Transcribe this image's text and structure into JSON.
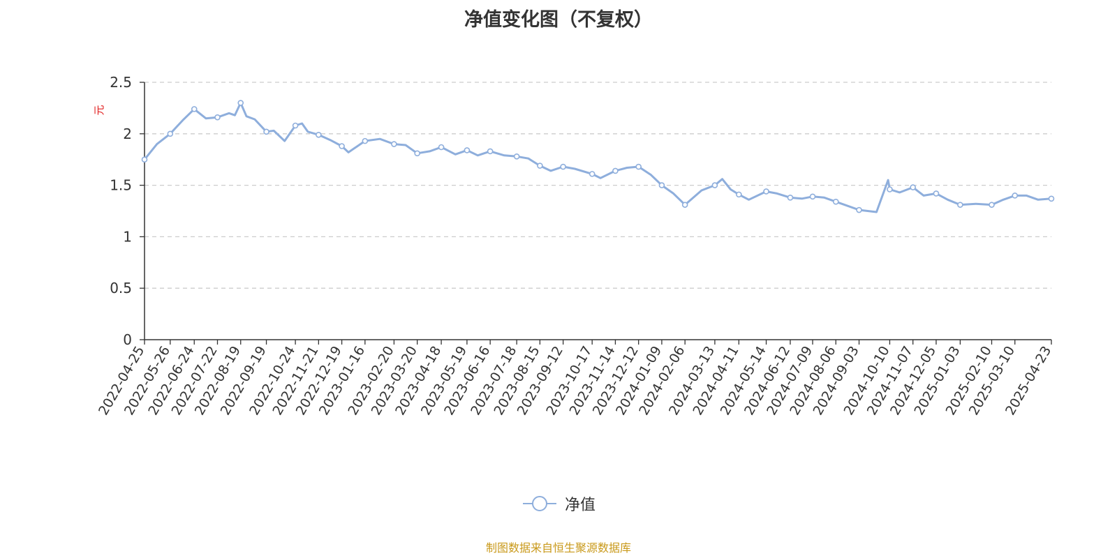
{
  "title": "净值变化图（不复权）",
  "source_note": "制图数据来自恒生聚源数据库",
  "colors": {
    "series": "#8eaedc",
    "marker_fill": "#ffffff",
    "axis": "#333333",
    "grid": "#cccccc",
    "unit": "#e01b1b",
    "source": "#c9991a"
  },
  "chart_data": {
    "type": "line",
    "title": "净值变化图（不复权）",
    "ylabel": "元",
    "ylim": [
      0,
      2.5
    ],
    "yticks": [
      "0",
      "0.5",
      "1",
      "1.5",
      "2",
      "2.5"
    ],
    "grid": true,
    "legend_position": "bottom-center",
    "xticks": [
      "2022-04-25",
      "2022-05-26",
      "2022-06-24",
      "2022-07-22",
      "2022-08-19",
      "2022-09-19",
      "2022-10-24",
      "2022-11-21",
      "2022-12-19",
      "2023-01-16",
      "2023-02-20",
      "2023-03-20",
      "2023-04-18",
      "2023-05-19",
      "2023-06-16",
      "2023-07-18",
      "2023-08-15",
      "2023-09-12",
      "2023-10-17",
      "2023-11-14",
      "2023-12-12",
      "2024-01-09",
      "2024-02-06",
      "2024-03-13",
      "2024-04-11",
      "2024-05-14",
      "2024-06-12",
      "2024-07-09",
      "2024-08-06",
      "2024-09-03",
      "2024-10-10",
      "2024-11-07",
      "2024-12-05",
      "2025-01-03",
      "2025-02-10",
      "2025-03-10",
      "2025-04-23"
    ],
    "series": [
      {
        "name": "净值",
        "points": [
          [
            "2022-04-25",
            1.75
          ],
          [
            "2022-05-10",
            1.9
          ],
          [
            "2022-05-26",
            2.0
          ],
          [
            "2022-06-10",
            2.13
          ],
          [
            "2022-06-24",
            2.24
          ],
          [
            "2022-07-08",
            2.15
          ],
          [
            "2022-07-22",
            2.16
          ],
          [
            "2022-08-05",
            2.2
          ],
          [
            "2022-08-12",
            2.18
          ],
          [
            "2022-08-19",
            2.3
          ],
          [
            "2022-08-26",
            2.17
          ],
          [
            "2022-09-05",
            2.14
          ],
          [
            "2022-09-19",
            2.02
          ],
          [
            "2022-09-28",
            2.03
          ],
          [
            "2022-10-11",
            1.93
          ],
          [
            "2022-10-24",
            2.08
          ],
          [
            "2022-11-01",
            2.1
          ],
          [
            "2022-11-08",
            2.02
          ],
          [
            "2022-11-21",
            1.99
          ],
          [
            "2022-12-05",
            1.94
          ],
          [
            "2022-12-19",
            1.88
          ],
          [
            "2022-12-27",
            1.82
          ],
          [
            "2023-01-16",
            1.93
          ],
          [
            "2023-02-03",
            1.95
          ],
          [
            "2023-02-20",
            1.9
          ],
          [
            "2023-03-06",
            1.89
          ],
          [
            "2023-03-20",
            1.81
          ],
          [
            "2023-04-04",
            1.83
          ],
          [
            "2023-04-18",
            1.87
          ],
          [
            "2023-05-05",
            1.8
          ],
          [
            "2023-05-19",
            1.84
          ],
          [
            "2023-06-01",
            1.79
          ],
          [
            "2023-06-16",
            1.83
          ],
          [
            "2023-07-03",
            1.79
          ],
          [
            "2023-07-18",
            1.78
          ],
          [
            "2023-08-01",
            1.76
          ],
          [
            "2023-08-15",
            1.69
          ],
          [
            "2023-08-28",
            1.64
          ],
          [
            "2023-09-12",
            1.68
          ],
          [
            "2023-09-26",
            1.66
          ],
          [
            "2023-10-17",
            1.61
          ],
          [
            "2023-10-27",
            1.57
          ],
          [
            "2023-11-14",
            1.64
          ],
          [
            "2023-11-28",
            1.67
          ],
          [
            "2023-12-12",
            1.68
          ],
          [
            "2023-12-27",
            1.6
          ],
          [
            "2024-01-09",
            1.5
          ],
          [
            "2024-01-23",
            1.42
          ],
          [
            "2024-02-06",
            1.31
          ],
          [
            "2024-02-26",
            1.45
          ],
          [
            "2024-03-13",
            1.5
          ],
          [
            "2024-03-22",
            1.56
          ],
          [
            "2024-04-01",
            1.46
          ],
          [
            "2024-04-11",
            1.41
          ],
          [
            "2024-04-23",
            1.36
          ],
          [
            "2024-05-14",
            1.44
          ],
          [
            "2024-05-27",
            1.42
          ],
          [
            "2024-06-12",
            1.38
          ],
          [
            "2024-06-26",
            1.37
          ],
          [
            "2024-07-09",
            1.39
          ],
          [
            "2024-07-23",
            1.38
          ],
          [
            "2024-08-06",
            1.34
          ],
          [
            "2024-08-20",
            1.3
          ],
          [
            "2024-09-03",
            1.26
          ],
          [
            "2024-09-24",
            1.24
          ],
          [
            "2024-10-08",
            1.55
          ],
          [
            "2024-10-10",
            1.46
          ],
          [
            "2024-10-22",
            1.43
          ],
          [
            "2024-11-07",
            1.48
          ],
          [
            "2024-11-20",
            1.4
          ],
          [
            "2024-12-05",
            1.42
          ],
          [
            "2024-12-19",
            1.36
          ],
          [
            "2025-01-03",
            1.31
          ],
          [
            "2025-01-22",
            1.32
          ],
          [
            "2025-02-10",
            1.31
          ],
          [
            "2025-02-24",
            1.36
          ],
          [
            "2025-03-10",
            1.4
          ],
          [
            "2025-03-24",
            1.4
          ],
          [
            "2025-04-07",
            1.36
          ],
          [
            "2025-04-23",
            1.37
          ]
        ]
      }
    ]
  }
}
